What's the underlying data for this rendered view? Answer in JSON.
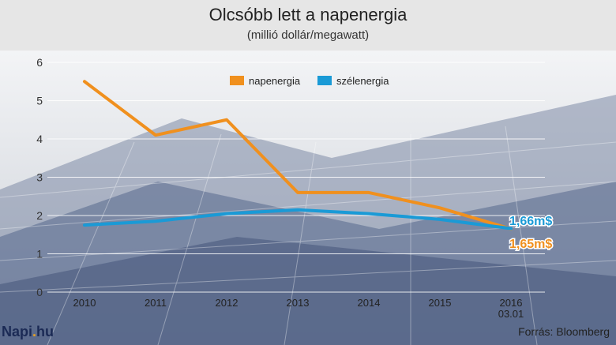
{
  "header": {
    "title": "Olcsóbb lett a napenergia",
    "subtitle": "(millió dollár/megawatt)"
  },
  "footer": {
    "logo_main": "Napi",
    "logo_dot": ".",
    "logo_tld": "hu",
    "source": "Forrás: Bloomberg"
  },
  "colors": {
    "nap": "#f0901e",
    "szel": "#1a9ad6"
  },
  "chart_data": {
    "type": "line",
    "title": "Olcsóbb lett a napenergia",
    "subtitle": "(millió dollár/megawatt)",
    "xlabel": "",
    "ylabel": "",
    "categories": [
      "2010",
      "2011",
      "2012",
      "2013",
      "2014",
      "2015",
      "2016\n03.01"
    ],
    "yticks": [
      0,
      1,
      2,
      3,
      4,
      5,
      6
    ],
    "ylim": [
      0,
      6
    ],
    "grid": true,
    "legend_position": "top-center",
    "series": [
      {
        "name": "napenergia",
        "color": "#f0901e",
        "values": [
          5.5,
          4.1,
          4.5,
          2.6,
          2.6,
          2.2,
          1.65
        ]
      },
      {
        "name": "szélenergia",
        "color": "#1a9ad6",
        "values": [
          1.75,
          1.85,
          2.05,
          2.15,
          2.05,
          1.9,
          1.66
        ]
      }
    ],
    "annotations": [
      {
        "series": "szélenergia",
        "text": "1,66m$"
      },
      {
        "series": "napenergia",
        "text": "1,65m$"
      }
    ]
  }
}
